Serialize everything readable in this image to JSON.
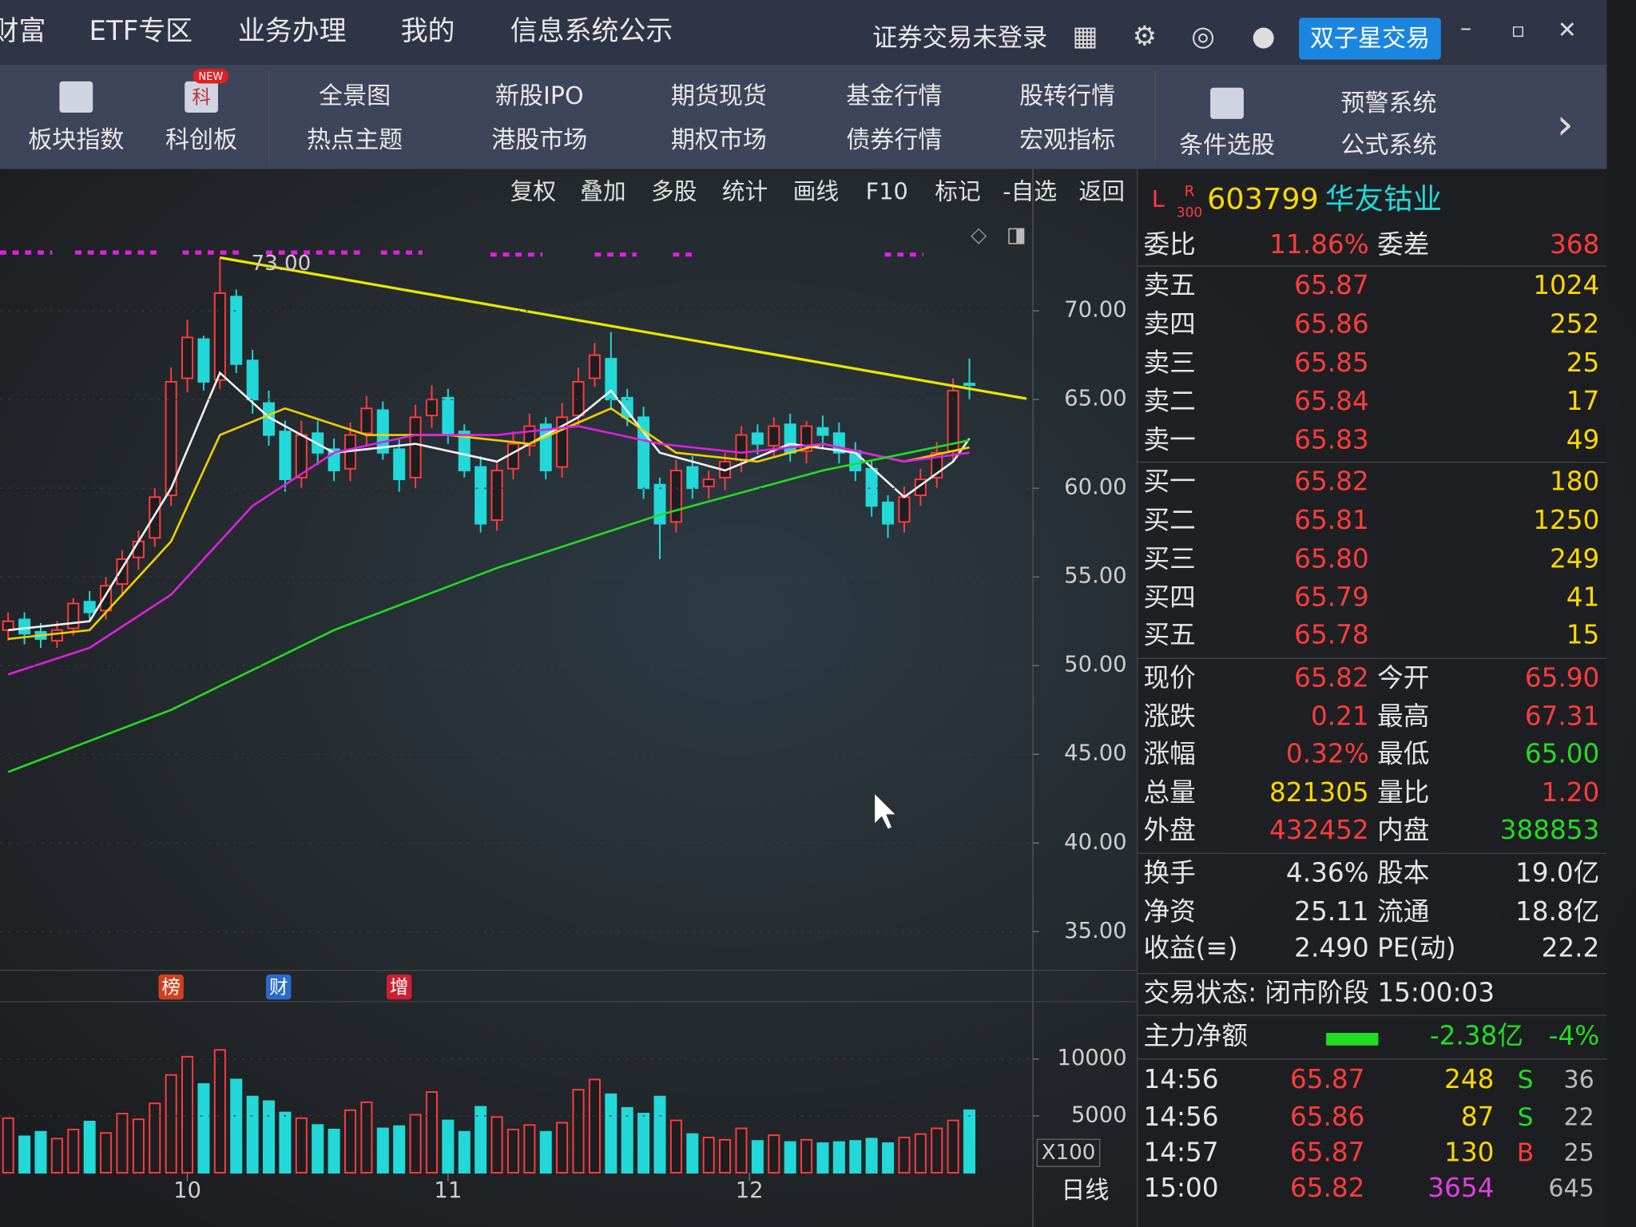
{
  "menu": {
    "items": [
      "财富",
      "ETF专区",
      "业务办理",
      "我的",
      "信息系统公示"
    ],
    "login": "证券交易未登录",
    "trade_button": "双子星交易"
  },
  "toolbar": {
    "items": [
      {
        "label": "板块指数"
      },
      {
        "label": "科创板",
        "icon": "科",
        "badge": "NEW"
      }
    ],
    "pairs": [
      [
        "全景图",
        "热点主题"
      ],
      [
        "新股IPO",
        "港股市场"
      ],
      [
        "期货现货",
        "期权市场"
      ],
      [
        "基金行情",
        "债券行情"
      ],
      [
        "股转行情",
        "宏观指标"
      ]
    ],
    "search": "条件选股",
    "pair2": [
      "预警系统",
      "公式系统"
    ]
  },
  "chart_toolbar": [
    "复权",
    "叠加",
    "多股",
    "统计",
    "画线",
    "F10",
    "标记",
    "-自选",
    "返回"
  ],
  "chart_data": {
    "type": "candlestick",
    "open": [
      52,
      52.6,
      51.9,
      51.4,
      52.1,
      53.6,
      53.1,
      54.6,
      56.1,
      57.2,
      59.6,
      66.2,
      68.4,
      66.1,
      70.8,
      67.2,
      64.8,
      63.2,
      60.6,
      63.1,
      62.2,
      61.1,
      63.1,
      64.4,
      62.2,
      60.6,
      64.1,
      65.1,
      63.2,
      61.2,
      58.2,
      61.1,
      62.4,
      63.6,
      61.2,
      64.1,
      66.2,
      67.3,
      65.1,
      64,
      60.2,
      58.1,
      61.2,
      60.1,
      60.6,
      61.6,
      63.1,
      62.4,
      63.6,
      62.1,
      63.4,
      63.1,
      62.1,
      61.1,
      59.2,
      58.1,
      59.6,
      60.6,
      62.1,
      65.9
    ],
    "high": [
      53,
      53,
      52.4,
      52.5,
      53.8,
      54.2,
      55,
      56.5,
      57.6,
      60,
      66.8,
      69.5,
      68.6,
      73,
      71.2,
      67.8,
      65.5,
      63.8,
      63.8,
      63.8,
      62.8,
      63.7,
      65.2,
      64.9,
      62.8,
      64.7,
      65.8,
      65.6,
      63.6,
      61.8,
      61.5,
      63.2,
      64.2,
      64,
      64.8,
      66.8,
      68.2,
      68.8,
      65.6,
      64.6,
      60.6,
      61.6,
      61.8,
      61,
      62,
      63.5,
      63.6,
      64,
      64.2,
      63.8,
      64.1,
      63.7,
      62.6,
      61.6,
      59.6,
      60.1,
      61.1,
      62.6,
      66.2,
      67.31
    ],
    "low": [
      51.4,
      51.2,
      51,
      51,
      51.7,
      52.6,
      52.6,
      53.9,
      55.4,
      56.7,
      59,
      65.4,
      65.5,
      65.6,
      66.5,
      64.2,
      62.4,
      59.8,
      60,
      61.3,
      60.4,
      60.4,
      62.4,
      61.6,
      59.8,
      60,
      63.4,
      62.5,
      60.6,
      57.5,
      57.6,
      60.5,
      61.8,
      60.5,
      60.6,
      63.5,
      65.7,
      64.4,
      63.5,
      59.4,
      56,
      57.5,
      59.4,
      59.4,
      59.9,
      60.9,
      61.9,
      61.8,
      61.5,
      61.4,
      62.3,
      61.4,
      60.4,
      58.4,
      57.2,
      57.5,
      59,
      60,
      61.5,
      65
    ],
    "close": [
      52.5,
      51.8,
      51.5,
      52,
      53.5,
      53,
      54.5,
      56,
      57,
      59.5,
      66,
      68.5,
      66,
      71,
      67,
      65,
      63,
      60.5,
      63,
      62,
      61,
      63,
      64.5,
      62,
      60.5,
      64,
      65,
      63,
      61,
      58,
      61,
      62.5,
      63.5,
      61,
      64,
      66,
      67.5,
      65,
      64,
      60,
      58,
      61,
      60,
      60.5,
      61.5,
      63,
      62.5,
      63.5,
      62,
      63.5,
      63,
      62,
      61,
      59,
      58,
      59.5,
      60.5,
      62,
      65.5,
      65.82
    ],
    "up_color": "#ff3c3c",
    "down_color": "#22d8d8",
    "ylim": [
      32.82,
      75.76
    ],
    "yticks": [
      {
        "value": 35,
        "label": "35.00"
      },
      {
        "value": 40,
        "label": "40.00"
      },
      {
        "value": 45,
        "label": "45.00"
      },
      {
        "value": 50,
        "label": "50.00"
      },
      {
        "value": 55,
        "label": "55.00"
      },
      {
        "value": 60,
        "label": "60.00"
      },
      {
        "value": 65,
        "label": "65.00"
      },
      {
        "value": 70,
        "label": "70.00"
      }
    ],
    "xlim": [
      -0.5,
      62.9
    ],
    "xticks": [
      {
        "value": 11,
        "label": "10"
      },
      {
        "value": 27,
        "label": "11"
      },
      {
        "value": 45.5,
        "label": "12"
      }
    ],
    "lines": [
      {
        "color": "#f2f2f2",
        "x": [
          0,
          5,
          10,
          13,
          16,
          20,
          25,
          30,
          35,
          37,
          40,
          44,
          48,
          52,
          55,
          58,
          59
        ],
        "values": [
          52,
          52.5,
          60,
          66.5,
          64,
          62,
          62.5,
          61.5,
          64,
          65.5,
          62,
          61,
          62.5,
          62,
          59.5,
          61.5,
          62.8
        ]
      },
      {
        "color": "#f0d000",
        "x": [
          0,
          5,
          10,
          13,
          17,
          22,
          27,
          32,
          37,
          41,
          46,
          50,
          55,
          59
        ],
        "values": [
          51.5,
          52,
          57,
          63,
          64.5,
          63,
          63,
          62.5,
          64.5,
          62,
          61.5,
          62.5,
          61.5,
          62.3
        ]
      },
      {
        "color": "#e020e0",
        "x": [
          0,
          5,
          10,
          15,
          20,
          25,
          30,
          35,
          40,
          45,
          50,
          55,
          59
        ],
        "values": [
          49.5,
          51,
          54,
          59,
          62,
          63,
          63,
          63.5,
          62.5,
          62,
          62.5,
          61.5,
          62
        ]
      },
      {
        "color": "#22dd22",
        "x": [
          0,
          10,
          20,
          30,
          40,
          50,
          59
        ],
        "values": [
          44,
          47.5,
          52,
          55.5,
          58.5,
          61,
          62.7
        ]
      }
    ],
    "trendline": {
      "color": "#e8e800",
      "x": [
        13,
        62.5
      ],
      "values": [
        73,
        65.05
      ],
      "label": "73.00"
    },
    "events": [
      {
        "x": 10,
        "label": "榜",
        "color": "#d04020"
      },
      {
        "x": 16.6,
        "label": "财",
        "color": "#2a6ad0"
      },
      {
        "x": 24,
        "label": "增",
        "color": "#d02030"
      }
    ],
    "volume": {
      "values": [
        4800,
        3200,
        3600,
        3000,
        3800,
        4500,
        3500,
        5200,
        4700,
        6100,
        8600,
        10200,
        7800,
        10800,
        8200,
        6700,
        6300,
        5300,
        4800,
        4200,
        3800,
        5500,
        6200,
        3900,
        4100,
        5100,
        7100,
        4600,
        3600,
        5800,
        4900,
        3800,
        4200,
        3600,
        4400,
        7300,
        8200,
        6900,
        5700,
        5200,
        6700,
        4600,
        3400,
        3100,
        2900,
        3900,
        2800,
        3300,
        2700,
        2900,
        2600,
        2700,
        2800,
        3000,
        2600,
        3100,
        3400,
        3900,
        4600,
        5500
      ],
      "ylim": [
        0,
        15046
      ],
      "yticks": [
        5000,
        10000
      ],
      "unit": "X100"
    },
    "period": "日线"
  },
  "quote": {
    "header": {
      "flags": [
        "L",
        "R",
        "300"
      ],
      "code": "603799",
      "name": "华友钴业"
    },
    "ratio": {
      "label": "委比",
      "value": "11.86%",
      "label2": "委差",
      "value2": "368"
    },
    "book": [
      {
        "label": "卖五",
        "price": "65.87",
        "volume": "1024"
      },
      {
        "label": "卖四",
        "price": "65.86",
        "volume": "252"
      },
      {
        "label": "卖三",
        "price": "65.85",
        "volume": "25"
      },
      {
        "label": "卖二",
        "price": "65.84",
        "volume": "17"
      },
      {
        "label": "卖一",
        "price": "65.83",
        "volume": "49"
      },
      {
        "label": "买一",
        "price": "65.82",
        "volume": "180"
      },
      {
        "label": "买二",
        "price": "65.81",
        "volume": "1250"
      },
      {
        "label": "买三",
        "price": "65.80",
        "volume": "249"
      },
      {
        "label": "买四",
        "price": "65.79",
        "volume": "41"
      },
      {
        "label": "买五",
        "price": "65.78",
        "volume": "15"
      }
    ],
    "stats": [
      {
        "label": "现价",
        "value": "65.82",
        "color": "#ff3c3c",
        "label2": "今开",
        "value2": "65.90",
        "color2": "#ff3c3c"
      },
      {
        "label": "涨跌",
        "value": "0.21",
        "color": "#ff3c3c",
        "label2": "最高",
        "value2": "67.31",
        "color2": "#ff3c3c"
      },
      {
        "label": "涨幅",
        "value": "0.32%",
        "color": "#ff3c3c",
        "label2": "最低",
        "value2": "65.00",
        "color2": "#22dd22"
      },
      {
        "label": "总量",
        "value": "821305",
        "color": "#ffd700",
        "label2": "量比",
        "value2": "1.20",
        "color2": "#ff3c3c"
      },
      {
        "label": "外盘",
        "value": "432452",
        "color": "#ff3c3c",
        "label2": "内盘",
        "value2": "388853",
        "color2": "#22dd22"
      },
      {
        "label": "换手",
        "value": "4.36%",
        "color": "#e6e6e6",
        "label2": "股本",
        "value2": "19.0亿",
        "color2": "#e6e6e6"
      },
      {
        "label": "净资",
        "value": "25.11",
        "color": "#e6e6e6",
        "label2": "流通",
        "value2": "18.8亿",
        "color2": "#e6e6e6"
      },
      {
        "label": "收益(≡)",
        "value": "2.490",
        "color": "#e6e6e6",
        "label2": "PE(动)",
        "value2": "22.2",
        "color2": "#e6e6e6"
      }
    ],
    "status": "交易状态: 闭市阶段 15:00:03",
    "flow": {
      "label": "主力净额",
      "value": "-2.38亿",
      "pct": "-4%"
    },
    "ticks": [
      {
        "time": "14:56",
        "price": "65.87",
        "volume": "248",
        "side": "S",
        "count": "36"
      },
      {
        "time": "14:56",
        "price": "65.86",
        "volume": "87",
        "side": "S",
        "count": "22"
      },
      {
        "time": "14:57",
        "price": "65.87",
        "volume": "130",
        "side": "B",
        "count": "25"
      },
      {
        "time": "15:00",
        "price": "65.82",
        "volume": "3654",
        "volume_color": "#e040e0",
        "count": "645"
      }
    ]
  }
}
